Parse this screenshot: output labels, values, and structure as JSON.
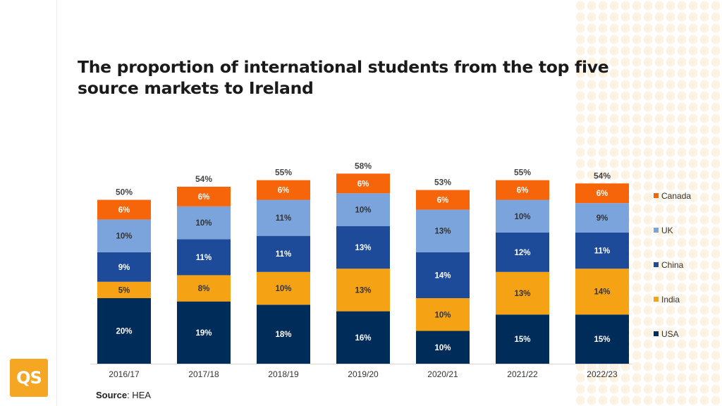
{
  "title": "The proportion of international students from the top five source markets to Ireland",
  "source": {
    "label": "Source",
    "text": ": HEA"
  },
  "logo": {
    "text": "QS",
    "color": "#f5a623"
  },
  "chart_data": {
    "type": "bar",
    "stacked": true,
    "categories": [
      "2016/17",
      "2017/18",
      "2018/19",
      "2019/20",
      "2020/21",
      "2021/22",
      "2022/23"
    ],
    "series": [
      {
        "name": "USA",
        "color": "#002c5a",
        "values": [
          20,
          19,
          18,
          16,
          10,
          15,
          15
        ]
      },
      {
        "name": "India",
        "color": "#f5a315",
        "values": [
          5,
          8,
          10,
          13,
          10,
          13,
          14
        ]
      },
      {
        "name": "China",
        "color": "#1d4b9a",
        "values": [
          9,
          11,
          11,
          13,
          14,
          12,
          11
        ]
      },
      {
        "name": "UK",
        "color": "#7ba4dc",
        "values": [
          10,
          10,
          11,
          10,
          13,
          10,
          9
        ]
      },
      {
        "name": "Canada",
        "color": "#f7650a",
        "values": [
          6,
          6,
          6,
          6,
          6,
          6,
          6
        ]
      }
    ],
    "totals": [
      "50%",
      "54%",
      "55%",
      "58%",
      "53%",
      "55%",
      "54%"
    ],
    "value_suffix": "%",
    "legend_position": "right",
    "grid": false
  }
}
